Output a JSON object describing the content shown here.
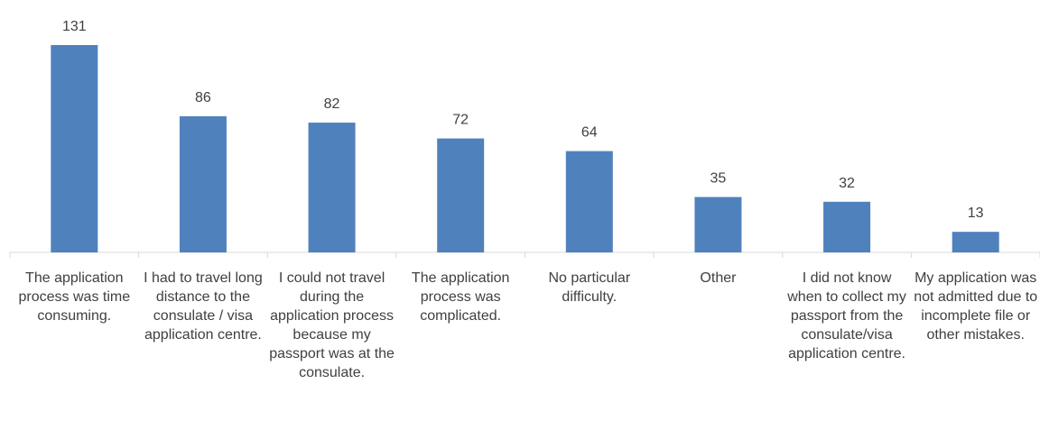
{
  "chart_data": {
    "type": "bar",
    "title": "",
    "xlabel": "",
    "ylabel": "",
    "ylim": [
      0,
      131
    ],
    "grid": false,
    "legend": "none",
    "colors": {
      "bar": "#4F81BD",
      "axis": "#D9D9D9",
      "text": "#404040"
    },
    "categories": [
      "The application process was time consuming.",
      "I had to travel long distance to the consulate / visa application centre.",
      "I could not travel during the application process because my passport was at the consulate.",
      "The application process was complicated.",
      "No particular difficulty.",
      "Other",
      "I did not know when to collect my passport from the consulate/visa application centre.",
      "My application was not admitted due to incomplete file or other mistakes."
    ],
    "values": [
      131,
      86,
      82,
      72,
      64,
      35,
      32,
      13
    ],
    "data_labels": [
      "131",
      "86",
      "82",
      "72",
      "64",
      "35",
      "32",
      "13"
    ]
  }
}
